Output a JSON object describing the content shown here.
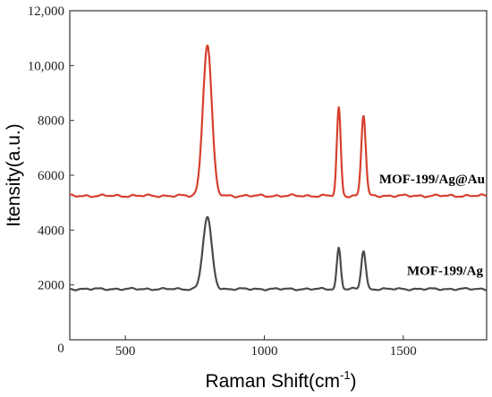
{
  "chart_data": {
    "type": "line",
    "title": "",
    "xlabel": "Raman Shift(cm",
    "xlabel_sup": "-1",
    "xlabel_suffix": ")",
    "ylabel": "Itensity(a.u.)",
    "xlim": [
      300,
      1800
    ],
    "ylim": [
      0,
      12000
    ],
    "xticks": [
      {
        "value": 500,
        "label": "500"
      },
      {
        "value": 1000,
        "label": "1000"
      },
      {
        "value": 1500,
        "label": "1500"
      }
    ],
    "yticks": [
      {
        "value": 2000,
        "label": "2000"
      },
      {
        "value": 4000,
        "label": "4000"
      },
      {
        "value": 6000,
        "label": "6000"
      },
      {
        "value": 8000,
        "label": "8000"
      },
      {
        "value": 10000,
        "label": "10,000"
      },
      {
        "value": 12000,
        "label": "12,000"
      }
    ],
    "origin_label": "0",
    "grid": false,
    "series": [
      {
        "name": "MOF-199/Ag@Au",
        "color": "#d6402e",
        "baseline": 5250,
        "peaks": [
          {
            "center": 795,
            "height": 10750,
            "width": 16
          },
          {
            "center": 1268,
            "height": 8450,
            "width": 7
          },
          {
            "center": 1357,
            "height": 8200,
            "width": 8
          }
        ],
        "noise_amplitude": 55
      },
      {
        "name": "MOF-199/Ag",
        "color": "#4a4a4a",
        "baseline": 1850,
        "peaks": [
          {
            "center": 795,
            "height": 4450,
            "width": 16
          },
          {
            "center": 1268,
            "height": 3350,
            "width": 7
          },
          {
            "center": 1357,
            "height": 3250,
            "width": 8
          }
        ],
        "noise_amplitude": 45
      }
    ]
  }
}
